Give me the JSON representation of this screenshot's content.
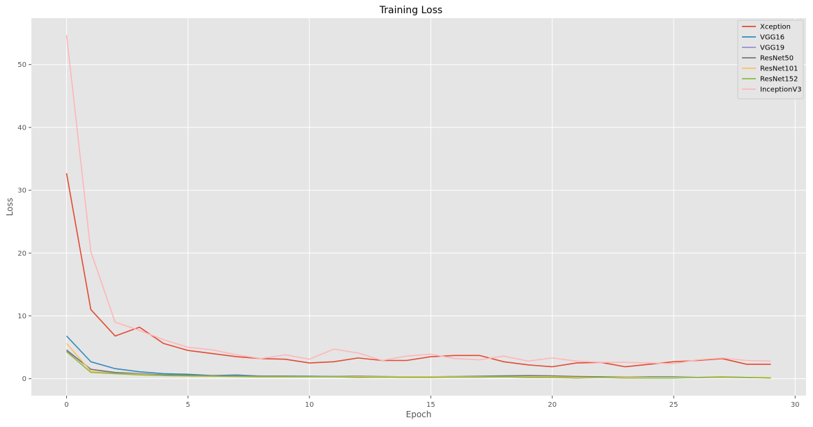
{
  "chart_data": {
    "type": "line",
    "title": "Training Loss",
    "xlabel": "Epoch",
    "ylabel": "Loss",
    "xlim": [
      -1.45,
      30.45
    ],
    "ylim": [
      -2.7,
      57.4
    ],
    "xticks": [
      0,
      5,
      10,
      15,
      20,
      25,
      30
    ],
    "yticks": [
      0,
      10,
      20,
      30,
      40,
      50
    ],
    "grid": true,
    "legend_position": "top-right",
    "background": "#e5e5e5",
    "grid_color": "#ffffff",
    "x": [
      0,
      1,
      2,
      3,
      4,
      5,
      6,
      7,
      8,
      9,
      10,
      11,
      12,
      13,
      14,
      15,
      16,
      17,
      18,
      19,
      20,
      21,
      22,
      23,
      24,
      25,
      26,
      27,
      28,
      29
    ],
    "series": [
      {
        "name": "Xception",
        "color": "#e24a33",
        "values": [
          32.7,
          11.0,
          6.8,
          8.2,
          5.6,
          4.5,
          4.0,
          3.5,
          3.2,
          3.1,
          2.5,
          2.7,
          3.3,
          2.9,
          2.9,
          3.5,
          3.7,
          3.7,
          2.7,
          2.2,
          1.9,
          2.5,
          2.6,
          1.9,
          2.3,
          2.7,
          2.9,
          3.2,
          2.3,
          2.3
        ]
      },
      {
        "name": "VGG16",
        "color": "#348abd",
        "values": [
          6.8,
          2.7,
          1.6,
          1.1,
          0.8,
          0.7,
          0.5,
          0.6,
          0.4,
          0.4,
          0.4,
          0.35,
          0.35,
          0.3,
          0.3,
          0.3,
          0.3,
          0.3,
          0.3,
          0.3,
          0.3,
          0.3,
          0.25,
          0.25,
          0.3,
          0.3,
          0.2,
          0.2,
          0.2,
          0.15
        ]
      },
      {
        "name": "VGG19",
        "color": "#988ed5",
        "values": [
          4.6,
          1.5,
          0.9,
          0.7,
          0.6,
          0.5,
          0.45,
          0.4,
          0.4,
          0.35,
          0.35,
          0.3,
          0.3,
          0.3,
          0.3,
          0.25,
          0.3,
          0.3,
          0.3,
          0.3,
          0.3,
          0.25,
          0.25,
          0.25,
          0.2,
          0.2,
          0.2,
          0.2,
          0.2,
          0.2
        ]
      },
      {
        "name": "ResNet50",
        "color": "#777777",
        "values": [
          4.5,
          1.5,
          1.0,
          0.8,
          0.6,
          0.55,
          0.5,
          0.45,
          0.4,
          0.4,
          0.35,
          0.35,
          0.4,
          0.35,
          0.3,
          0.3,
          0.35,
          0.4,
          0.45,
          0.5,
          0.45,
          0.35,
          0.3,
          0.25,
          0.2,
          0.2,
          0.2,
          0.25,
          0.2,
          0.15
        ]
      },
      {
        "name": "ResNet101",
        "color": "#fbc15e",
        "values": [
          5.6,
          1.2,
          0.8,
          0.7,
          0.5,
          0.4,
          0.4,
          0.35,
          0.3,
          0.3,
          0.3,
          0.3,
          0.3,
          0.3,
          0.3,
          0.3,
          0.3,
          0.3,
          0.3,
          0.3,
          0.3,
          0.2,
          0.2,
          0.2,
          0.2,
          0.2,
          0.2,
          0.2,
          0.2,
          0.2
        ]
      },
      {
        "name": "ResNet152",
        "color": "#8eba42",
        "values": [
          4.3,
          1.0,
          0.8,
          0.6,
          0.5,
          0.45,
          0.4,
          0.35,
          0.3,
          0.3,
          0.3,
          0.3,
          0.2,
          0.25,
          0.2,
          0.2,
          0.25,
          0.25,
          0.3,
          0.2,
          0.2,
          0.1,
          0.2,
          0.1,
          0.1,
          0.1,
          0.2,
          0.3,
          0.2,
          0.1
        ]
      },
      {
        "name": "InceptionV3",
        "color": "#ffb5b8",
        "values": [
          54.7,
          20.2,
          9.0,
          7.7,
          6.2,
          5.0,
          4.6,
          3.8,
          3.2,
          3.8,
          3.1,
          4.7,
          4.1,
          2.9,
          3.6,
          3.9,
          3.2,
          3.0,
          3.6,
          2.8,
          3.3,
          2.8,
          2.6,
          2.6,
          2.5,
          2.4,
          3.0,
          3.3,
          2.9,
          2.8
        ]
      }
    ]
  }
}
